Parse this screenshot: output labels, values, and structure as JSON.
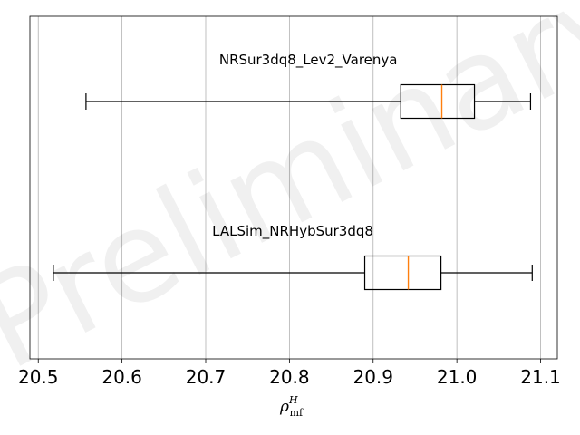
{
  "chart_data": {
    "type": "boxplot",
    "orientation": "horizontal",
    "title": "",
    "xlabel": {
      "base": "ρ",
      "superscript": "H",
      "subscript": "mf"
    },
    "ylabel": "",
    "xlim": [
      20.49,
      21.12
    ],
    "xticks": [
      20.5,
      20.6,
      20.7,
      20.8,
      20.9,
      21.0,
      21.1
    ],
    "xtick_labels": [
      "20.5",
      "20.6",
      "20.7",
      "20.8",
      "20.9",
      "21.0",
      "21.1"
    ],
    "grid": "vertical",
    "watermark": "Preliminary",
    "colors": {
      "box": "#000000",
      "median": "#ff7f0e",
      "grid": "#b0b0b0"
    },
    "boxes": [
      {
        "label": "NRSur3dq8_Lev2_Varenya",
        "whisker_low": 20.557,
        "q1": 20.933,
        "median": 20.982,
        "q3": 21.021,
        "whisker_high": 21.088
      },
      {
        "label": "LALSim_NRHybSur3dq8",
        "whisker_low": 20.518,
        "q1": 20.89,
        "median": 20.942,
        "q3": 20.981,
        "whisker_high": 21.09
      }
    ]
  }
}
